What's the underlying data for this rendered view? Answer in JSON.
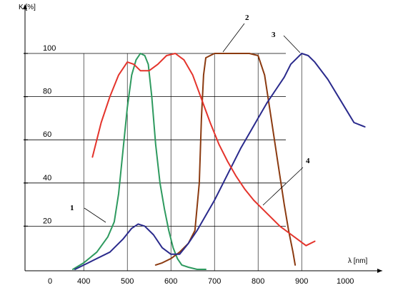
{
  "chart_data": {
    "type": "line",
    "ylabel": "K [%]",
    "xlabel": "λ [nm]",
    "xlim": [
      300,
      1100
    ],
    "ylim": [
      0,
      110
    ],
    "y_ticks": [
      {
        "value": 20,
        "label": "20"
      },
      {
        "value": 40,
        "label": "40"
      },
      {
        "value": 60,
        "label": "60"
      },
      {
        "value": 80,
        "label": "80"
      },
      {
        "value": 100,
        "label": "100"
      }
    ],
    "x_ticks": [
      {
        "value": 400,
        "label": "400"
      },
      {
        "value": 500,
        "label": "500"
      },
      {
        "value": 600,
        "label": "600"
      },
      {
        "value": 700,
        "label": "700"
      },
      {
        "value": 800,
        "label": "800"
      },
      {
        "value": 900,
        "label": "900"
      },
      {
        "value": 1000,
        "label": "1000"
      }
    ],
    "x_origin_label": "0",
    "series": [
      {
        "name": "1",
        "color": "#2e9a5f",
        "x": [
          375,
          400,
          430,
          455,
          470,
          480,
          490,
          500,
          510,
          520,
          530,
          540,
          548,
          556,
          565,
          575,
          585,
          595,
          605,
          615,
          625,
          640,
          660,
          680
        ],
        "y": [
          0,
          3,
          8,
          15,
          22,
          35,
          55,
          75,
          90,
          97,
          100,
          99,
          95,
          80,
          58,
          40,
          28,
          18,
          10,
          5,
          2,
          1,
          0,
          0
        ]
      },
      {
        "name": "2",
        "color": "#8b3a10",
        "x": [
          565,
          580,
          600,
          620,
          640,
          655,
          665,
          670,
          675,
          680,
          690,
          700,
          720,
          740,
          760,
          780,
          800,
          815,
          830,
          845,
          860,
          870,
          880,
          885
        ],
        "y": [
          2,
          3,
          5,
          8,
          12,
          18,
          40,
          70,
          90,
          98,
          99,
          100,
          100,
          100,
          100,
          100,
          99,
          90,
          70,
          50,
          30,
          18,
          8,
          2
        ]
      },
      {
        "name": "3",
        "color": "#2a2a8c",
        "x": [
          380,
          420,
          460,
          490,
          510,
          525,
          540,
          560,
          580,
          600,
          620,
          640,
          660,
          680,
          700,
          720,
          740,
          760,
          780,
          800,
          820,
          840,
          860,
          875,
          890,
          900,
          915,
          930,
          960,
          990,
          1020,
          1045
        ],
        "y": [
          0,
          4,
          8,
          14,
          19,
          21,
          20,
          16,
          10,
          7,
          7,
          12,
          18,
          25,
          32,
          40,
          48,
          56,
          63,
          70,
          77,
          83,
          89,
          95,
          98,
          100,
          99,
          96,
          88,
          78,
          68,
          66
        ]
      },
      {
        "name": "4",
        "color": "#e4342c",
        "x": [
          420,
          440,
          460,
          480,
          500,
          515,
          530,
          550,
          570,
          590,
          610,
          630,
          650,
          670,
          690,
          710,
          730,
          750,
          770,
          790,
          810,
          830,
          850,
          870,
          890,
          910,
          930
        ],
        "y": [
          52,
          68,
          80,
          90,
          96,
          95,
          92,
          92,
          95,
          99,
          100,
          97,
          90,
          79,
          68,
          58,
          50,
          43,
          37,
          32,
          28,
          24,
          20,
          17,
          14,
          11,
          13
        ]
      }
    ],
    "curve_labels": [
      {
        "text": "1",
        "series": "1"
      },
      {
        "text": "2",
        "series": "2"
      },
      {
        "text": "3",
        "series": "3"
      },
      {
        "text": "4",
        "series": "4"
      }
    ]
  }
}
